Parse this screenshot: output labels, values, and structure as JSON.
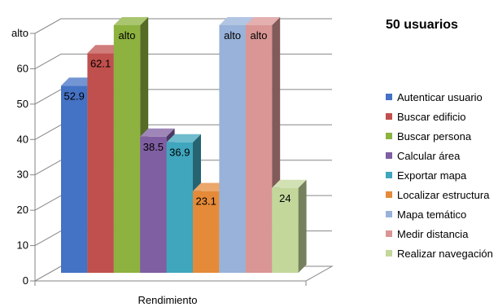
{
  "chart_data": {
    "type": "bar",
    "title": "50 usuarios",
    "xlabel": "Rendimiento",
    "categories": [
      "Rendimiento"
    ],
    "ylim": [
      0,
      70
    ],
    "yticks": [
      "0",
      "10",
      "20",
      "30",
      "40",
      "50",
      "60",
      "alto"
    ],
    "grid": true,
    "legend_position": "right",
    "series": [
      {
        "name": "Autenticar usuario",
        "value": 52.9,
        "label": "52.9",
        "color": "#4472C4"
      },
      {
        "name": "Buscar edificio",
        "value": 62.1,
        "label": "62.1",
        "color": "#C0504D"
      },
      {
        "name": "Buscar persona",
        "value": 70,
        "label": "alto",
        "color": "#8DB23F"
      },
      {
        "name": "Calcular área",
        "value": 38.5,
        "label": "38.5",
        "color": "#7F5EA2"
      },
      {
        "name": "Exportar mapa",
        "value": 36.9,
        "label": "36.9",
        "color": "#3FA6BD"
      },
      {
        "name": "Localizar estructura",
        "value": 23.1,
        "label": "23.1",
        "color": "#E58A38"
      },
      {
        "name": "Mapa temático",
        "value": 70,
        "label": "alto",
        "color": "#98B2D9"
      },
      {
        "name": "Medir distancia",
        "value": 70,
        "label": "alto",
        "color": "#D99694"
      },
      {
        "name": "Realizar navegación",
        "value": 24,
        "label": "24",
        "color": "#C3D79B"
      }
    ]
  }
}
